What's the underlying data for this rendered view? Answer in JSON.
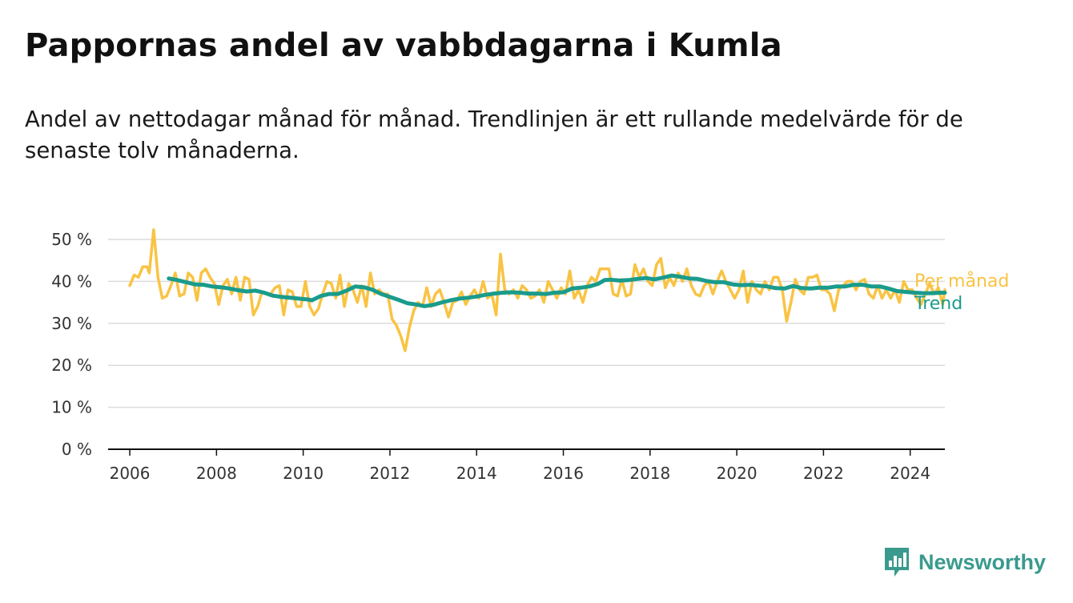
{
  "title": "Pappornas andel av vabbdagarna i Kumla",
  "subtitle": "Andel av nettodagar månad för månad. Trendlinjen är ett rullande medelvärde för de senaste tolv månaderna.",
  "brand": {
    "name": "Newsworthy",
    "icon": "newsworthy-logo-icon",
    "color": "#3a9a8e"
  },
  "chart_data": {
    "type": "line",
    "title": "Pappornas andel av vabbdagarna i Kumla",
    "subtitle": "Andel av nettodagar månad för månad. Trendlinjen är ett rullande medelvärde för de senaste tolv månaderna.",
    "xlabel": "",
    "ylabel": "",
    "xlim": [
      2005.5,
      2024.8
    ],
    "ylim": [
      0,
      50
    ],
    "x_ticks": [
      2006,
      2008,
      2010,
      2012,
      2014,
      2016,
      2018,
      2020,
      2022,
      2024
    ],
    "x_tick_labels": [
      "2006",
      "2008",
      "2010",
      "2012",
      "2014",
      "2016",
      "2018",
      "2020",
      "2022",
      "2024"
    ],
    "y_ticks": [
      0,
      10,
      20,
      30,
      40,
      50
    ],
    "y_tick_labels": [
      "0 %",
      "10 %",
      "20 %",
      "30 %",
      "40 %",
      "50 %"
    ],
    "grid": true,
    "legend_placement": "inline-right",
    "series": [
      {
        "name": "Per månad",
        "color": "#f9c343",
        "points": [
          [
            2006.0,
            39
          ],
          [
            2006.1,
            41.5
          ],
          [
            2006.2,
            41
          ],
          [
            2006.3,
            43.5
          ],
          [
            2006.4,
            43.5
          ],
          [
            2006.45,
            42
          ],
          [
            2006.55,
            52.3
          ],
          [
            2006.65,
            41
          ],
          [
            2006.75,
            36
          ],
          [
            2006.85,
            36.5
          ],
          [
            2006.95,
            39
          ],
          [
            2007.05,
            42
          ],
          [
            2007.15,
            36.5
          ],
          [
            2007.25,
            37
          ],
          [
            2007.35,
            42
          ],
          [
            2007.45,
            41
          ],
          [
            2007.55,
            35.5
          ],
          [
            2007.65,
            42
          ],
          [
            2007.75,
            43
          ],
          [
            2007.85,
            41
          ],
          [
            2007.95,
            39.5
          ],
          [
            2008.05,
            34.5
          ],
          [
            2008.15,
            39
          ],
          [
            2008.25,
            40.5
          ],
          [
            2008.35,
            37
          ],
          [
            2008.45,
            41
          ],
          [
            2008.55,
            35.5
          ],
          [
            2008.65,
            41
          ],
          [
            2008.75,
            40.5
          ],
          [
            2008.85,
            32
          ],
          [
            2008.95,
            34
          ],
          [
            2009.05,
            37.5
          ],
          [
            2009.15,
            37
          ],
          [
            2009.25,
            37
          ],
          [
            2009.35,
            38.5
          ],
          [
            2009.45,
            39
          ],
          [
            2009.55,
            32
          ],
          [
            2009.65,
            38
          ],
          [
            2009.75,
            37.5
          ],
          [
            2009.85,
            34
          ],
          [
            2009.95,
            34
          ],
          [
            2010.05,
            40
          ],
          [
            2010.15,
            34
          ],
          [
            2010.25,
            32
          ],
          [
            2010.35,
            33.5
          ],
          [
            2010.45,
            37
          ],
          [
            2010.55,
            40
          ],
          [
            2010.65,
            39.5
          ],
          [
            2010.75,
            36
          ],
          [
            2010.85,
            41.5
          ],
          [
            2010.95,
            34
          ],
          [
            2011.05,
            39.5
          ],
          [
            2011.15,
            38
          ],
          [
            2011.25,
            35
          ],
          [
            2011.35,
            39
          ],
          [
            2011.45,
            34
          ],
          [
            2011.55,
            42
          ],
          [
            2011.65,
            37
          ],
          [
            2011.75,
            38
          ],
          [
            2011.85,
            37
          ],
          [
            2011.95,
            37
          ],
          [
            2012.05,
            31
          ],
          [
            2012.15,
            29.5
          ],
          [
            2012.25,
            27
          ],
          [
            2012.35,
            23.5
          ],
          [
            2012.45,
            29
          ],
          [
            2012.55,
            33
          ],
          [
            2012.65,
            35
          ],
          [
            2012.75,
            34
          ],
          [
            2012.85,
            38.5
          ],
          [
            2012.95,
            34
          ],
          [
            2013.05,
            37
          ],
          [
            2013.15,
            38
          ],
          [
            2013.25,
            35
          ],
          [
            2013.35,
            31.5
          ],
          [
            2013.45,
            35
          ],
          [
            2013.55,
            35.5
          ],
          [
            2013.65,
            37.5
          ],
          [
            2013.75,
            34.5
          ],
          [
            2013.85,
            36.5
          ],
          [
            2013.95,
            38
          ],
          [
            2014.05,
            36
          ],
          [
            2014.15,
            40
          ],
          [
            2014.25,
            36
          ],
          [
            2014.35,
            37
          ],
          [
            2014.45,
            32
          ],
          [
            2014.55,
            46.5
          ],
          [
            2014.65,
            38
          ],
          [
            2014.75,
            37
          ],
          [
            2014.85,
            38
          ],
          [
            2014.95,
            36
          ],
          [
            2015.05,
            39
          ],
          [
            2015.15,
            38
          ],
          [
            2015.25,
            36
          ],
          [
            2015.35,
            36.5
          ],
          [
            2015.45,
            38
          ],
          [
            2015.55,
            35
          ],
          [
            2015.65,
            40
          ],
          [
            2015.75,
            38
          ],
          [
            2015.85,
            36
          ],
          [
            2015.95,
            38.5
          ],
          [
            2016.05,
            37
          ],
          [
            2016.15,
            42.5
          ],
          [
            2016.25,
            36
          ],
          [
            2016.35,
            38
          ],
          [
            2016.45,
            35
          ],
          [
            2016.55,
            39
          ],
          [
            2016.65,
            41
          ],
          [
            2016.75,
            40
          ],
          [
            2016.85,
            43
          ],
          [
            2016.95,
            43
          ],
          [
            2017.05,
            43
          ],
          [
            2017.15,
            37
          ],
          [
            2017.25,
            36.5
          ],
          [
            2017.35,
            40.5
          ],
          [
            2017.45,
            36.5
          ],
          [
            2017.55,
            37
          ],
          [
            2017.65,
            44
          ],
          [
            2017.75,
            41
          ],
          [
            2017.85,
            43
          ],
          [
            2017.95,
            40
          ],
          [
            2018.05,
            39
          ],
          [
            2018.15,
            44
          ],
          [
            2018.25,
            45.5
          ],
          [
            2018.35,
            38.5
          ],
          [
            2018.45,
            41
          ],
          [
            2018.55,
            39
          ],
          [
            2018.65,
            42
          ],
          [
            2018.75,
            40
          ],
          [
            2018.85,
            43
          ],
          [
            2018.95,
            39
          ],
          [
            2019.05,
            37
          ],
          [
            2019.15,
            36.5
          ],
          [
            2019.25,
            39
          ],
          [
            2019.35,
            40
          ],
          [
            2019.45,
            37
          ],
          [
            2019.55,
            40
          ],
          [
            2019.65,
            42.5
          ],
          [
            2019.75,
            40
          ],
          [
            2019.85,
            38
          ],
          [
            2019.95,
            36
          ],
          [
            2020.05,
            38
          ],
          [
            2020.15,
            42.5
          ],
          [
            2020.25,
            35
          ],
          [
            2020.35,
            40
          ],
          [
            2020.45,
            38
          ],
          [
            2020.55,
            37
          ],
          [
            2020.65,
            40
          ],
          [
            2020.75,
            38
          ],
          [
            2020.85,
            41
          ],
          [
            2020.95,
            41
          ],
          [
            2021.05,
            38
          ],
          [
            2021.15,
            30.5
          ],
          [
            2021.25,
            35
          ],
          [
            2021.35,
            40.5
          ],
          [
            2021.45,
            38
          ],
          [
            2021.55,
            37
          ],
          [
            2021.65,
            41
          ],
          [
            2021.75,
            41
          ],
          [
            2021.85,
            41.5
          ],
          [
            2021.95,
            38
          ],
          [
            2022.05,
            38
          ],
          [
            2022.15,
            37
          ],
          [
            2022.25,
            33
          ],
          [
            2022.35,
            38
          ],
          [
            2022.45,
            39
          ],
          [
            2022.55,
            40
          ],
          [
            2022.65,
            40
          ],
          [
            2022.75,
            38
          ],
          [
            2022.85,
            40
          ],
          [
            2022.95,
            40.5
          ],
          [
            2023.05,
            37
          ],
          [
            2023.15,
            36
          ],
          [
            2023.25,
            39
          ],
          [
            2023.35,
            36
          ],
          [
            2023.45,
            38
          ],
          [
            2023.55,
            36
          ],
          [
            2023.65,
            38
          ],
          [
            2023.75,
            35
          ],
          [
            2023.85,
            40
          ],
          [
            2023.95,
            38
          ],
          [
            2024.05,
            38
          ],
          [
            2024.15,
            36
          ],
          [
            2024.25,
            34.5
          ],
          [
            2024.35,
            37
          ],
          [
            2024.45,
            39.5
          ],
          [
            2024.55,
            37
          ],
          [
            2024.65,
            38.5
          ],
          [
            2024.75,
            34.5
          ],
          [
            2024.8,
            38
          ]
        ]
      },
      {
        "name": "Trend",
        "color": "#1a9b8c",
        "points": [
          [
            2006.9,
            40.7
          ],
          [
            2007.1,
            40.3
          ],
          [
            2007.3,
            39.8
          ],
          [
            2007.5,
            39.3
          ],
          [
            2007.7,
            39.2
          ],
          [
            2007.9,
            38.8
          ],
          [
            2008.1,
            38.6
          ],
          [
            2008.3,
            38.3
          ],
          [
            2008.5,
            37.9
          ],
          [
            2008.7,
            37.6
          ],
          [
            2008.9,
            37.8
          ],
          [
            2009.1,
            37.3
          ],
          [
            2009.3,
            36.6
          ],
          [
            2009.5,
            36.3
          ],
          [
            2009.7,
            36.1
          ],
          [
            2009.9,
            35.9
          ],
          [
            2010.1,
            35.7
          ],
          [
            2010.2,
            35.5
          ],
          [
            2010.4,
            36.5
          ],
          [
            2010.6,
            37
          ],
          [
            2010.8,
            37
          ],
          [
            2011.0,
            37.8
          ],
          [
            2011.2,
            38.8
          ],
          [
            2011.4,
            38.6
          ],
          [
            2011.6,
            38
          ],
          [
            2011.8,
            37
          ],
          [
            2012.0,
            36.3
          ],
          [
            2012.2,
            35.6
          ],
          [
            2012.4,
            34.8
          ],
          [
            2012.6,
            34.5
          ],
          [
            2012.8,
            34.1
          ],
          [
            2013.0,
            34.4
          ],
          [
            2013.2,
            35
          ],
          [
            2013.4,
            35.5
          ],
          [
            2013.6,
            35.9
          ],
          [
            2013.8,
            36.1
          ],
          [
            2014.0,
            36.4
          ],
          [
            2014.2,
            36.8
          ],
          [
            2014.4,
            37.1
          ],
          [
            2014.6,
            37.3
          ],
          [
            2014.8,
            37.4
          ],
          [
            2015.0,
            37.3
          ],
          [
            2015.2,
            37.1
          ],
          [
            2015.4,
            37.1
          ],
          [
            2015.6,
            37
          ],
          [
            2015.8,
            37.3
          ],
          [
            2016.0,
            37.4
          ],
          [
            2016.2,
            38.3
          ],
          [
            2016.4,
            38.5
          ],
          [
            2016.6,
            38.8
          ],
          [
            2016.8,
            39.4
          ],
          [
            2016.95,
            40.3
          ],
          [
            2017.1,
            40.4
          ],
          [
            2017.3,
            40.2
          ],
          [
            2017.5,
            40.3
          ],
          [
            2017.7,
            40.6
          ],
          [
            2017.9,
            40.8
          ],
          [
            2018.1,
            40.5
          ],
          [
            2018.3,
            40.9
          ],
          [
            2018.5,
            41.4
          ],
          [
            2018.7,
            41.1
          ],
          [
            2018.9,
            40.7
          ],
          [
            2019.1,
            40.6
          ],
          [
            2019.3,
            40.1
          ],
          [
            2019.5,
            39.8
          ],
          [
            2019.7,
            39.8
          ],
          [
            2019.9,
            39.3
          ],
          [
            2020.1,
            39.1
          ],
          [
            2020.3,
            39.2
          ],
          [
            2020.5,
            39
          ],
          [
            2020.7,
            38.8
          ],
          [
            2020.9,
            38.4
          ],
          [
            2021.1,
            38.3
          ],
          [
            2021.3,
            38.9
          ],
          [
            2021.5,
            38.4
          ],
          [
            2021.7,
            38.3
          ],
          [
            2021.9,
            38.5
          ],
          [
            2022.1,
            38.5
          ],
          [
            2022.3,
            38.8
          ],
          [
            2022.5,
            38.8
          ],
          [
            2022.7,
            39.2
          ],
          [
            2022.9,
            39.2
          ],
          [
            2023.1,
            38.8
          ],
          [
            2023.3,
            38.8
          ],
          [
            2023.5,
            38.3
          ],
          [
            2023.7,
            37.7
          ],
          [
            2023.9,
            37.5
          ],
          [
            2024.1,
            37.3
          ],
          [
            2024.3,
            37.2
          ],
          [
            2024.5,
            37.2
          ],
          [
            2024.7,
            37.3
          ],
          [
            2024.8,
            37.3
          ]
        ]
      }
    ]
  }
}
